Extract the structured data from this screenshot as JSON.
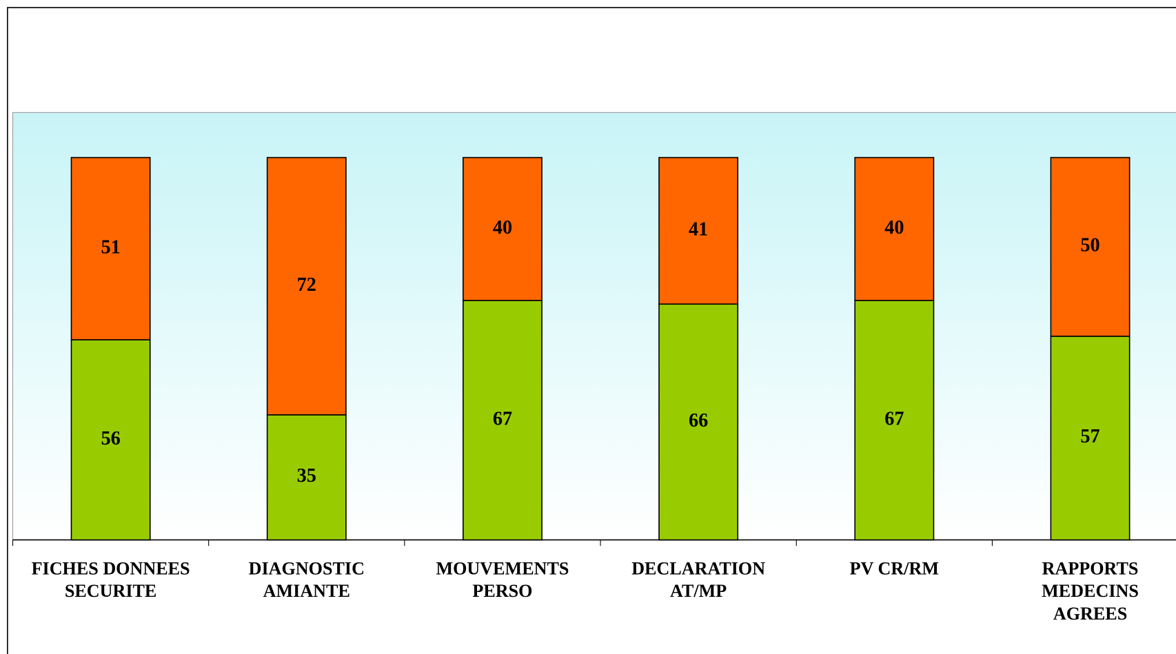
{
  "chart_data": {
    "type": "stacked_bar",
    "categories": [
      "FICHES DONNEES\nSECURITE",
      "DIAGNOSTIC\nAMIANTE",
      "MOUVEMENTS\nPERSO",
      "DECLARATION\nAT/MP",
      "PV CR/RM",
      "RAPPORTS\nMEDECINS\nAGREES"
    ],
    "series": [
      {
        "color": "#99cc00",
        "values": [
          56,
          35,
          67,
          66,
          67,
          57
        ]
      },
      {
        "color": "#ff6600",
        "values": [
          51,
          72,
          40,
          41,
          40,
          50
        ]
      }
    ]
  }
}
